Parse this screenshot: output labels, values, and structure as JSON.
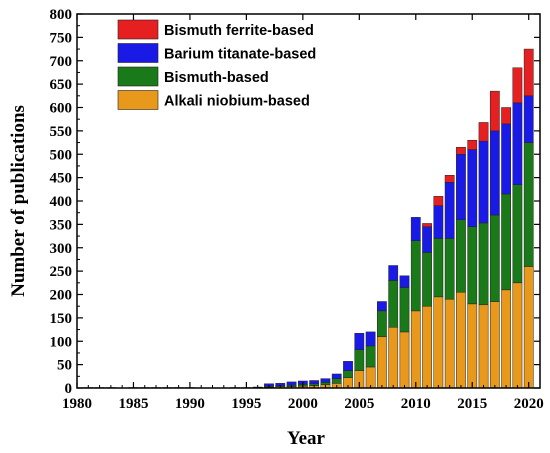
{
  "chart_data": {
    "type": "bar",
    "stacked": true,
    "xlabel": "Year",
    "ylabel": "Number of publications",
    "xlim": [
      1980,
      2021
    ],
    "ylim": [
      0,
      800
    ],
    "x_ticks": [
      1980,
      1985,
      1990,
      1995,
      2000,
      2005,
      2010,
      2015,
      2020
    ],
    "y_ticks": [
      0,
      50,
      100,
      150,
      200,
      250,
      300,
      350,
      400,
      450,
      500,
      550,
      600,
      650,
      700,
      750,
      800
    ],
    "legend_position": "top-left",
    "x": [
      1980,
      1981,
      1982,
      1983,
      1984,
      1985,
      1986,
      1987,
      1988,
      1989,
      1990,
      1991,
      1992,
      1993,
      1994,
      1995,
      1996,
      1997,
      1998,
      1999,
      2000,
      2001,
      2002,
      2003,
      2004,
      2005,
      2006,
      2007,
      2008,
      2009,
      2010,
      2011,
      2012,
      2013,
      2014,
      2015,
      2016,
      2017,
      2018,
      2019,
      2020
    ],
    "series": [
      {
        "name": "Alkali niobium-based",
        "color": "#E8981A",
        "values": [
          0,
          1,
          1,
          1,
          0,
          1,
          1,
          1,
          1,
          1,
          1,
          0,
          0,
          0,
          1,
          1,
          1,
          2,
          3,
          3,
          4,
          5,
          7,
          10,
          22,
          37,
          45,
          110,
          130,
          120,
          165,
          175,
          195,
          190,
          205,
          180,
          178,
          185,
          210,
          225,
          260
        ]
      },
      {
        "name": "Bismuth-based",
        "color": "#1A7A1A",
        "values": [
          0,
          0,
          0,
          0,
          0,
          0,
          0,
          0,
          0,
          0,
          0,
          0,
          0,
          0,
          0,
          0,
          0,
          2,
          2,
          3,
          4,
          4,
          5,
          10,
          15,
          45,
          45,
          55,
          100,
          95,
          150,
          115,
          125,
          130,
          155,
          165,
          175,
          185,
          205,
          210,
          265
        ]
      },
      {
        "name": "Barium titanate-based",
        "color": "#1A1AE6",
        "values": [
          0,
          0,
          0,
          0,
          0,
          0,
          0,
          0,
          0,
          0,
          0,
          0,
          0,
          0,
          0,
          0,
          1,
          5,
          5,
          7,
          7,
          7,
          8,
          10,
          20,
          35,
          30,
          20,
          32,
          25,
          50,
          55,
          70,
          120,
          140,
          165,
          175,
          180,
          150,
          175,
          100
        ]
      },
      {
        "name": "Bismuth ferrite-based",
        "color": "#E62020",
        "values": [
          0,
          0,
          0,
          0,
          0,
          0,
          0,
          0,
          0,
          0,
          0,
          0,
          0,
          0,
          0,
          0,
          0,
          0,
          0,
          0,
          0,
          0,
          0,
          0,
          0,
          0,
          0,
          0,
          0,
          0,
          0,
          7,
          20,
          15,
          15,
          20,
          40,
          85,
          35,
          75,
          100
        ]
      }
    ]
  }
}
